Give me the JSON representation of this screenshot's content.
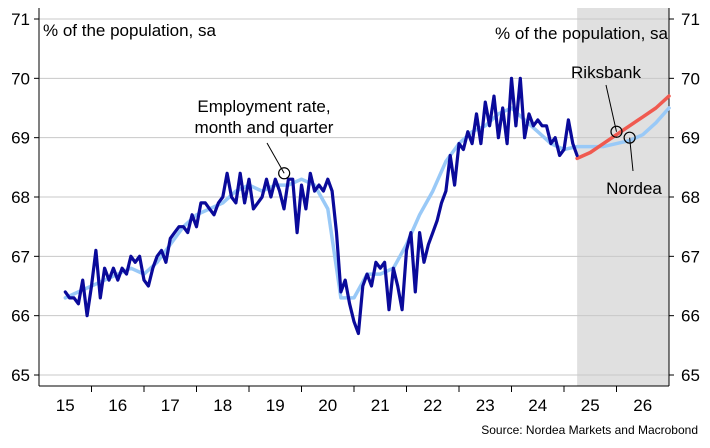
{
  "chart_data": {
    "type": "line",
    "title": "",
    "ylabel_left": "% of the population, sa",
    "ylabel_right": "% of the population, sa",
    "ylim": [
      65,
      71
    ],
    "yticks": [
      65,
      66,
      67,
      68,
      69,
      70,
      71
    ],
    "xlim": [
      2014.5,
      2026.5
    ],
    "xticks": [
      2015,
      2016,
      2017,
      2018,
      2019,
      2020,
      2021,
      2022,
      2023,
      2024,
      2025,
      2026
    ],
    "xtick_labels": [
      "15",
      "16",
      "17",
      "18",
      "19",
      "20",
      "21",
      "22",
      "23",
      "24",
      "25",
      "26"
    ],
    "forecast_shade": [
      2024.75,
      2026.5
    ],
    "grid": "horizontal",
    "source": "Source: Nordea Markets and Macrobond",
    "annotations": [
      {
        "id": "employment",
        "text_lines": [
          "Employment rate,",
          "month and quarter"
        ],
        "point": [
          2019.17,
          68.4
        ]
      },
      {
        "id": "riksbank",
        "text_lines": [
          "Riksbank"
        ],
        "point": [
          2025.5,
          69.1
        ]
      },
      {
        "id": "nordea",
        "text_lines": [
          "Nordea"
        ],
        "point": [
          2025.75,
          69.0
        ]
      }
    ],
    "series": [
      {
        "key": "monthly",
        "color": "#0a0a9a",
        "x": [
          2015.0,
          2015.083,
          2015.167,
          2015.25,
          2015.333,
          2015.417,
          2015.5,
          2015.583,
          2015.667,
          2015.75,
          2015.833,
          2015.917,
          2016.0,
          2016.083,
          2016.167,
          2016.25,
          2016.333,
          2016.417,
          2016.5,
          2016.583,
          2016.667,
          2016.75,
          2016.833,
          2016.917,
          2017.0,
          2017.083,
          2017.167,
          2017.25,
          2017.333,
          2017.417,
          2017.5,
          2017.583,
          2017.667,
          2017.75,
          2017.833,
          2017.917,
          2018.0,
          2018.083,
          2018.167,
          2018.25,
          2018.333,
          2018.417,
          2018.5,
          2018.583,
          2018.667,
          2018.75,
          2018.833,
          2018.917,
          2019.0,
          2019.083,
          2019.167,
          2019.25,
          2019.333,
          2019.417,
          2019.5,
          2019.583,
          2019.667,
          2019.75,
          2019.833,
          2019.917,
          2020.0,
          2020.083,
          2020.167,
          2020.25,
          2020.333,
          2020.417,
          2020.5,
          2020.583,
          2020.667,
          2020.75,
          2020.833,
          2020.917,
          2021.0,
          2021.083,
          2021.167,
          2021.25,
          2021.333,
          2021.417,
          2021.5,
          2021.583,
          2021.667,
          2021.75,
          2021.833,
          2021.917,
          2022.0,
          2022.083,
          2022.167,
          2022.25,
          2022.333,
          2022.417,
          2022.5,
          2022.583,
          2022.667,
          2022.75,
          2022.833,
          2022.917,
          2023.0,
          2023.083,
          2023.167,
          2023.25,
          2023.333,
          2023.417,
          2023.5,
          2023.583,
          2023.667,
          2023.75,
          2023.833,
          2023.917,
          2024.0,
          2024.083,
          2024.167,
          2024.25,
          2024.333,
          2024.417,
          2024.5,
          2024.583,
          2024.667,
          2024.75
        ],
        "values": [
          66.4,
          66.3,
          66.3,
          66.2,
          66.6,
          66.0,
          66.5,
          67.1,
          66.3,
          66.8,
          66.6,
          66.8,
          66.6,
          66.8,
          66.7,
          67.0,
          66.9,
          67.0,
          66.6,
          66.5,
          66.8,
          67.0,
          67.1,
          66.9,
          67.3,
          67.4,
          67.5,
          67.5,
          67.4,
          67.7,
          67.5,
          67.9,
          67.9,
          67.8,
          67.7,
          67.9,
          68.0,
          68.4,
          68.0,
          67.9,
          68.4,
          67.9,
          68.3,
          67.8,
          67.9,
          68.0,
          68.3,
          68.0,
          68.3,
          68.1,
          67.8,
          68.3,
          68.3,
          67.4,
          68.2,
          67.8,
          68.4,
          68.1,
          68.2,
          68.1,
          68.3,
          68.1,
          67.4,
          66.4,
          66.6,
          66.2,
          65.9,
          65.7,
          66.5,
          66.7,
          66.5,
          66.9,
          66.8,
          66.9,
          66.1,
          66.8,
          66.5,
          66.1,
          67.1,
          67.4,
          66.4,
          67.4,
          66.9,
          67.2,
          67.4,
          67.6,
          67.9,
          68.1,
          68.7,
          68.2,
          68.9,
          68.8,
          69.1,
          68.9,
          69.4,
          68.9,
          69.6,
          69.2,
          69.7,
          69.0,
          69.5,
          68.9,
          70.0,
          69.2,
          70.0,
          69.0,
          69.4,
          69.2,
          69.3,
          69.2,
          69.2,
          68.9,
          69.0,
          68.7,
          68.8,
          69.3,
          68.9,
          68.7
        ]
      },
      {
        "key": "quarterly",
        "color": "#99c9f7",
        "x": [
          2015.0,
          2015.25,
          2015.5,
          2015.75,
          2016.0,
          2016.25,
          2016.5,
          2016.75,
          2017.0,
          2017.25,
          2017.5,
          2017.75,
          2018.0,
          2018.25,
          2018.5,
          2018.75,
          2019.0,
          2019.25,
          2019.5,
          2019.75,
          2020.0,
          2020.25,
          2020.5,
          2020.75,
          2021.0,
          2021.25,
          2021.5,
          2021.75,
          2022.0,
          2022.25,
          2022.5,
          2022.75,
          2023.0,
          2023.25,
          2023.5,
          2023.75,
          2024.0,
          2024.25,
          2024.5,
          2024.75,
          2025.0,
          2025.25,
          2025.5,
          2025.75,
          2026.0,
          2026.25,
          2026.5
        ],
        "values": [
          66.3,
          66.4,
          66.5,
          66.6,
          66.7,
          66.8,
          66.7,
          66.9,
          67.2,
          67.5,
          67.7,
          67.8,
          67.9,
          68.1,
          68.2,
          68.1,
          68.2,
          68.2,
          68.3,
          68.2,
          67.8,
          66.3,
          66.3,
          66.7,
          66.7,
          66.8,
          67.2,
          67.7,
          68.1,
          68.6,
          68.9,
          69.1,
          69.2,
          69.4,
          69.5,
          69.3,
          69.1,
          68.9,
          68.8,
          68.85,
          68.85,
          68.85,
          68.9,
          68.95,
          69.05,
          69.25,
          69.5
        ]
      },
      {
        "key": "riksbank",
        "color": "#f05a50",
        "x": [
          2024.75,
          2025.0,
          2025.25,
          2025.5,
          2025.75,
          2026.0,
          2026.25,
          2026.5
        ],
        "values": [
          68.65,
          68.75,
          68.9,
          69.05,
          69.2,
          69.35,
          69.5,
          69.7
        ]
      }
    ]
  }
}
